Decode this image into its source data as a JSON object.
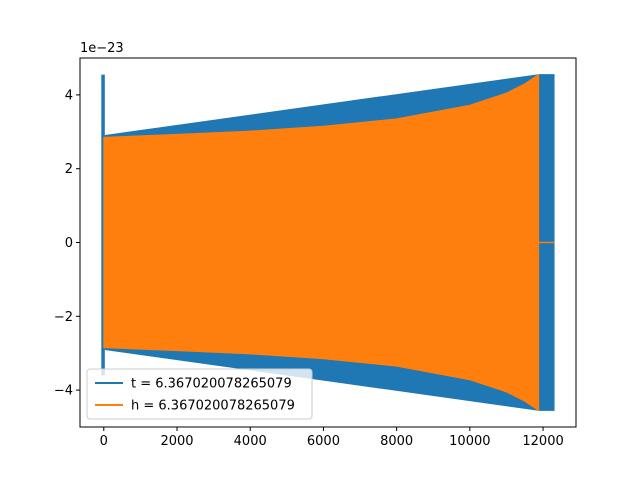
{
  "chart_data": {
    "type": "line",
    "title": "",
    "xlabel": "",
    "ylabel": "",
    "y_offset_text": "1e−23",
    "xlim": [
      -650,
      12900
    ],
    "ylim": [
      -5.0,
      5.0
    ],
    "x_ticks": [
      0,
      2000,
      4000,
      6000,
      8000,
      10000,
      12000
    ],
    "x_tick_labels": [
      "0",
      "2000",
      "4000",
      "6000",
      "8000",
      "10000",
      "12000"
    ],
    "y_ticks": [
      -4,
      -2,
      0,
      2,
      4
    ],
    "y_tick_labels": [
      "−4",
      "−2",
      "0",
      "2",
      "4"
    ],
    "grid": false,
    "legend_position": "lower-left",
    "series": [
      {
        "name": "t = 6.367020078265079",
        "color": "#1f77b4",
        "style": "dense-oscillation",
        "envelope": [
          {
            "x": -20,
            "lo": -3.6,
            "hi": 4.55
          },
          {
            "x": 40,
            "lo": -2.9,
            "hi": 2.9
          },
          {
            "x": 11900,
            "lo": -4.55,
            "hi": 4.55
          },
          {
            "x": 12300,
            "lo": -4.55,
            "hi": 4.55
          }
        ]
      },
      {
        "name": "h = 6.367020078265079",
        "color": "#ff7f0e",
        "style": "dense-oscillation",
        "envelope": [
          {
            "x": 0,
            "lo": -2.85,
            "hi": 2.85
          },
          {
            "x": 2000,
            "lo": -2.93,
            "hi": 2.93
          },
          {
            "x": 4000,
            "lo": -3.02,
            "hi": 3.02
          },
          {
            "x": 6000,
            "lo": -3.15,
            "hi": 3.15
          },
          {
            "x": 8000,
            "lo": -3.35,
            "hi": 3.35
          },
          {
            "x": 10000,
            "lo": -3.72,
            "hi": 3.72
          },
          {
            "x": 11000,
            "lo": -4.05,
            "hi": 4.05
          },
          {
            "x": 11500,
            "lo": -4.3,
            "hi": 4.3
          },
          {
            "x": 11880,
            "lo": -4.55,
            "hi": 4.55
          }
        ],
        "tail": {
          "x_start": 11880,
          "x_end": 12300,
          "y": 0
        }
      }
    ]
  }
}
